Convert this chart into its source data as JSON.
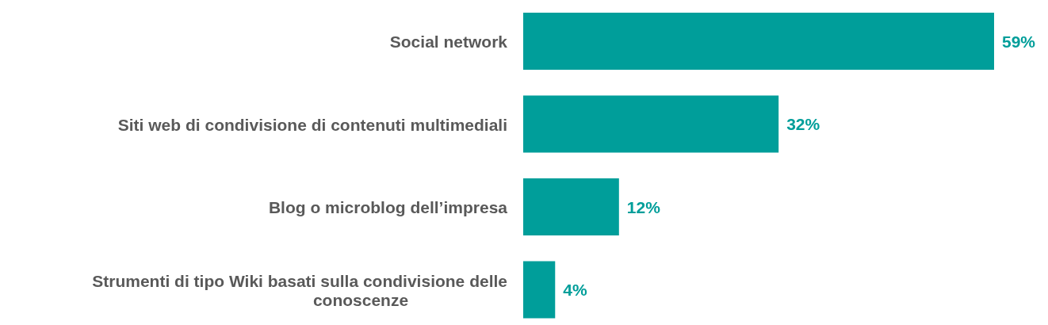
{
  "chart_data": {
    "type": "bar",
    "orientation": "horizontal",
    "categories": [
      "Social network",
      "Siti web di condivisione di contenuti multimediali",
      "Blog o microblog dell’impresa",
      "Strumenti di tipo Wiki basati sulla condivisione delle conoscenze"
    ],
    "values": [
      59,
      32,
      12,
      4
    ],
    "value_labels": [
      "59%",
      "32%",
      "12%",
      "4%"
    ],
    "color": "#009e9a"
  }
}
